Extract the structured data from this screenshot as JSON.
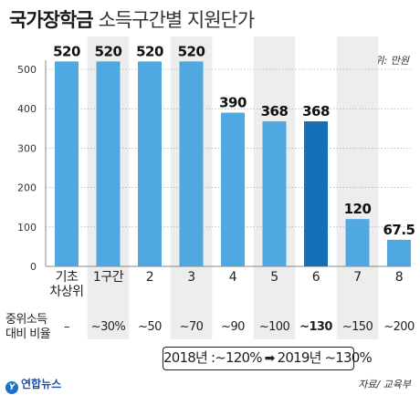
{
  "title": {
    "main": "국가장학금",
    "sub": "소득구간별 지원단가"
  },
  "unit": "단위: 만원",
  "row_label": [
    "중위소득",
    "대비 비율"
  ],
  "highlight": {
    "from": "2018년 :~120%",
    "arrow": "➡",
    "to": "2019년 ~130%"
  },
  "source": "자료/ 교육부",
  "logo": {
    "mark": "Y",
    "text": "연합뉴스"
  },
  "colors": {
    "bar": "#4fa8df",
    "highlight_bar": "#1570b8",
    "band": "#ededed"
  },
  "chart_data": {
    "type": "bar",
    "categories": [
      "기초\n차상위",
      "1구간",
      "2",
      "3",
      "4",
      "5",
      "6",
      "7",
      "8"
    ],
    "values": [
      520,
      520,
      520,
      520,
      390,
      368,
      368,
      120,
      67.5
    ],
    "value_labels": [
      "520",
      "520",
      "520",
      "520",
      "390",
      "368",
      "368",
      "120",
      "67.5"
    ],
    "ratios": [
      "–",
      "~30%",
      "~50",
      "~70",
      "~90",
      "~100",
      "~130",
      "~150",
      "~200"
    ],
    "highlight_index": 6,
    "ylim": [
      0,
      500
    ],
    "yticks": [
      0,
      100,
      200,
      300,
      400,
      500
    ],
    "grid": true
  }
}
